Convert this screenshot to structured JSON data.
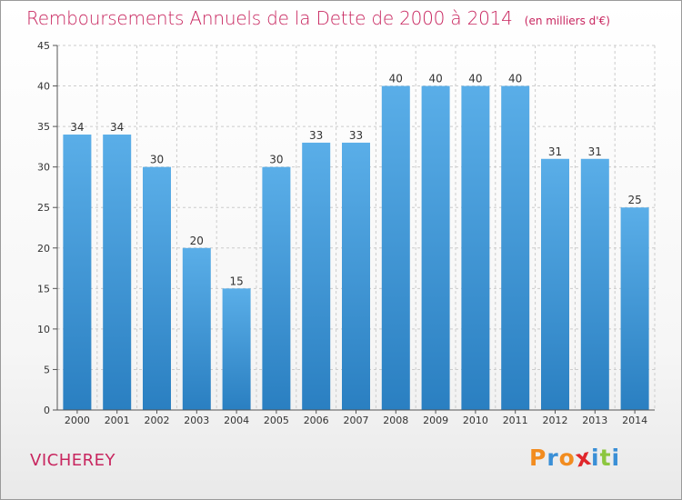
{
  "chart_data": {
    "type": "bar",
    "title": "Remboursements Annuels de la Dette de 2000 à 2014",
    "unit": "(en milliers d'€)",
    "categories": [
      "2000",
      "2001",
      "2002",
      "2003",
      "2004",
      "2005",
      "2006",
      "2007",
      "2008",
      "2009",
      "2010",
      "2011",
      "2012",
      "2013",
      "2014"
    ],
    "values": [
      34,
      34,
      30,
      20,
      15,
      30,
      33,
      33,
      40,
      40,
      40,
      40,
      31,
      31,
      25
    ],
    "ylim": [
      0,
      45
    ],
    "yticks": [
      0,
      5,
      10,
      15,
      20,
      25,
      30,
      35,
      40,
      45
    ],
    "grid": true,
    "xlabel": "",
    "ylabel": ""
  },
  "location": "VICHEREY",
  "logo": {
    "letters": [
      "P",
      "r",
      "o",
      "x",
      "i",
      "t",
      "i"
    ],
    "colors": [
      "#f28c1f",
      "#3a8fd6",
      "#f28c1f",
      "#e0262b",
      "#3a8fd6",
      "#8cc63f",
      "#3a8fd6"
    ]
  },
  "colors": {
    "accent": "#c8265f",
    "bar_top": "#5aaee8",
    "bar_bottom": "#2a7fc1",
    "grid": "#cccccc"
  }
}
